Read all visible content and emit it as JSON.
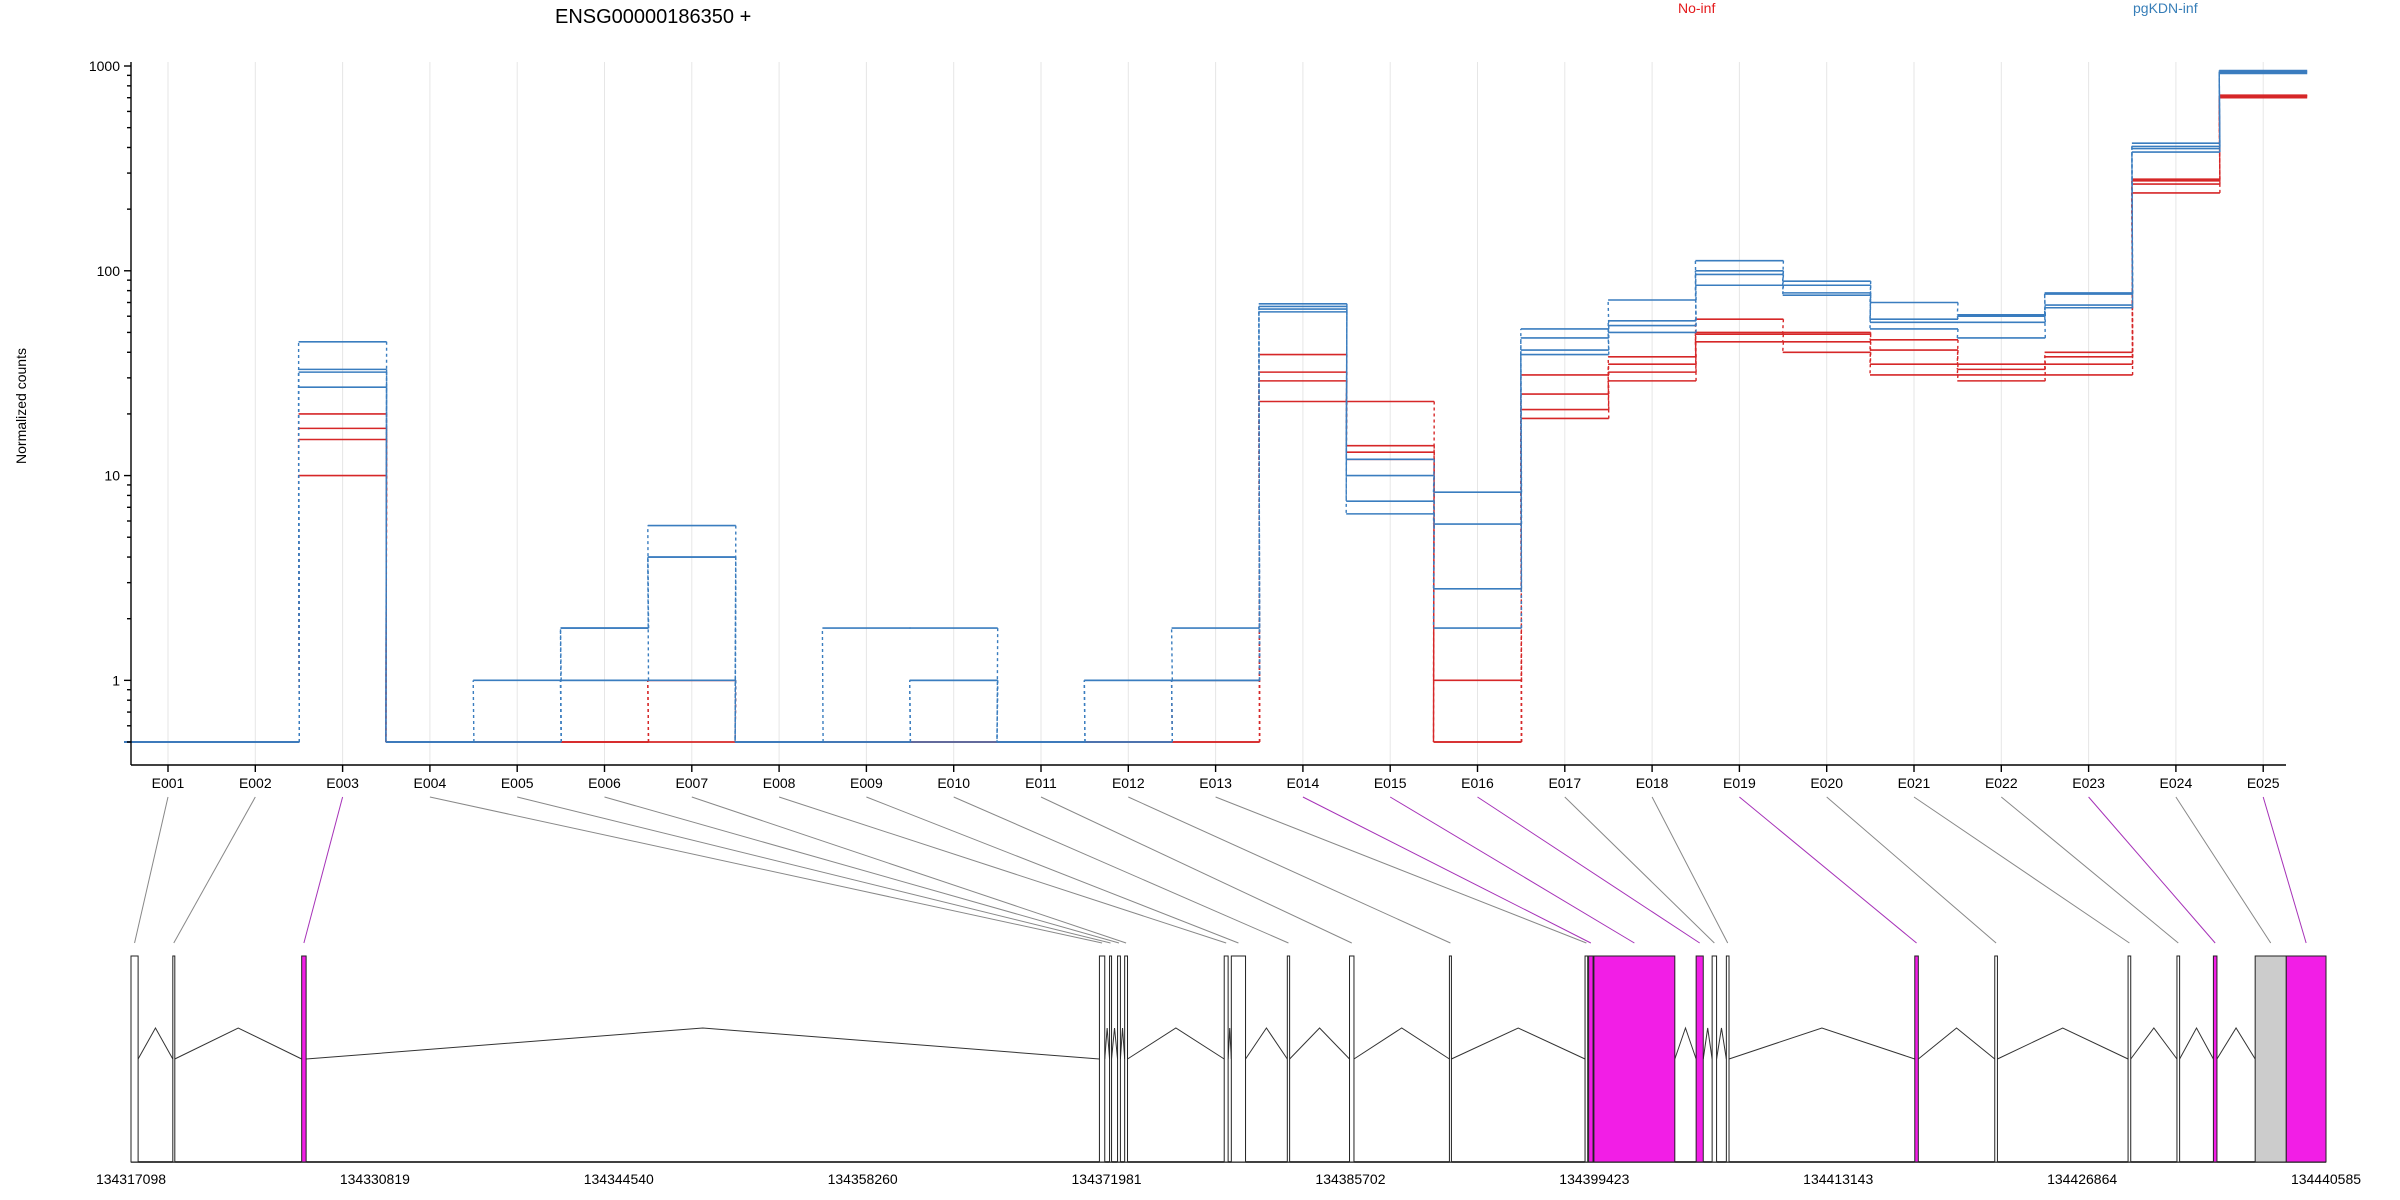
{
  "chart_data": {
    "type": "line",
    "title": "ENSG00000186350 +",
    "ylabel": "Normalized counts",
    "xlabel": "",
    "y_scale": "log",
    "ylim": [
      0.5,
      1000
    ],
    "y_ticks": [
      "1",
      "10",
      "100",
      "1000"
    ],
    "y_tick_values": [
      1,
      10,
      100,
      1000
    ],
    "categories": [
      "E001",
      "E002",
      "E003",
      "E004",
      "E005",
      "E006",
      "E007",
      "E008",
      "E009",
      "E010",
      "E011",
      "E012",
      "E013",
      "E014",
      "E015",
      "E016",
      "E017",
      "E018",
      "E019",
      "E020",
      "E021",
      "E022",
      "E023",
      "E024",
      "E025"
    ],
    "legend": [
      {
        "name": "No-inf",
        "color": "#e41a1c",
        "placement": "top"
      },
      {
        "name": "pgKDN-inf",
        "color": "#377eb8",
        "placement": "top-right"
      }
    ],
    "grid": true,
    "colors": {
      "No-inf": "#d62728",
      "pgKDN-inf": "#3a7dbf",
      "highlight_exon": "#f21ee6",
      "gray_exon": "#cccccc"
    },
    "series": [
      {
        "group": "No-inf",
        "values": [
          0.5,
          0.5,
          20,
          0.5,
          0.5,
          0.5,
          1,
          0.5,
          0.5,
          0.5,
          0.5,
          0.5,
          1,
          39,
          14,
          1,
          31,
          38,
          58,
          50,
          46,
          35,
          40,
          280,
          720
        ]
      },
      {
        "group": "No-inf",
        "values": [
          0.5,
          0.5,
          17,
          0.5,
          0.5,
          0.5,
          1,
          0.5,
          0.5,
          0.5,
          0.5,
          0.5,
          0.5,
          32,
          13,
          0.5,
          25,
          35,
          50,
          49,
          41,
          33,
          38,
          275,
          715
        ]
      },
      {
        "group": "No-inf",
        "values": [
          0.5,
          0.5,
          15,
          0.5,
          0.5,
          0.5,
          0.5,
          0.5,
          0.5,
          0.5,
          0.5,
          0.5,
          0.5,
          29,
          23,
          0.5,
          21,
          32,
          49,
          45,
          35,
          31,
          35,
          265,
          710
        ]
      },
      {
        "group": "No-inf",
        "values": [
          0.5,
          0.5,
          10,
          0.5,
          0.5,
          0.5,
          0.5,
          0.5,
          0.5,
          0.5,
          0.5,
          0.5,
          0.5,
          23,
          12,
          0.5,
          19,
          29,
          45,
          40,
          31,
          29,
          31,
          240,
          700
        ]
      },
      {
        "group": "pgKDN-inf",
        "values": [
          0.5,
          0.5,
          45,
          0.5,
          1,
          1.8,
          5.7,
          0.5,
          1.8,
          1.8,
          0.5,
          1,
          1.8,
          69,
          12,
          8.3,
          52,
          72,
          112,
          89,
          70,
          61,
          78,
          420,
          950
        ]
      },
      {
        "group": "pgKDN-inf",
        "values": [
          0.5,
          0.5,
          33,
          0.5,
          0.5,
          1,
          4,
          0.5,
          0.5,
          1,
          0.5,
          1,
          1,
          67,
          10,
          5.8,
          47,
          57,
          100,
          85,
          58,
          60,
          77,
          405,
          940
        ]
      },
      {
        "group": "pgKDN-inf",
        "values": [
          0.5,
          0.5,
          32,
          0.5,
          0.5,
          1.8,
          4,
          0.5,
          0.5,
          1,
          0.5,
          0.5,
          1,
          65,
          7.5,
          2.8,
          41,
          54,
          96,
          78,
          56,
          56,
          68,
          395,
          930
        ]
      },
      {
        "group": "pgKDN-inf",
        "values": [
          0.5,
          0.5,
          27,
          0.5,
          0.5,
          1,
          1,
          0.5,
          0.5,
          0.5,
          0.5,
          0.5,
          1,
          63,
          6.5,
          1.8,
          39,
          50,
          85,
          76,
          52,
          47,
          66,
          380,
          920
        ]
      }
    ],
    "gene_model": {
      "coordinate_labels": [
        "134317098",
        "134330819",
        "134344540",
        "134358260",
        "134371981",
        "134385702",
        "134399423",
        "134413143",
        "134426864",
        "134440585"
      ],
      "coordinate_values": [
        134317098,
        134330819,
        134344540,
        134358260,
        134371981,
        134385702,
        134399423,
        134413143,
        134426864,
        134440585
      ],
      "range": [
        134317098,
        134440585
      ],
      "exons": [
        {
          "id": "E001",
          "start": 134317098,
          "end": 134317498,
          "highlight": false
        },
        {
          "id": "E002",
          "start": 134319450,
          "end": 134319560,
          "highlight": false
        },
        {
          "id": "E003",
          "start": 134326700,
          "end": 134326950,
          "highlight": true
        },
        {
          "id": "E004",
          "start": 134371580,
          "end": 134371880,
          "highlight": false
        },
        {
          "id": "E005",
          "start": 134372150,
          "end": 134372260,
          "highlight": false
        },
        {
          "id": "E006",
          "start": 134372600,
          "end": 134372760,
          "highlight": false
        },
        {
          "id": "E007",
          "start": 134373000,
          "end": 134373160,
          "highlight": false
        },
        {
          "id": "E008",
          "start": 134378600,
          "end": 134378820,
          "highlight": false
        },
        {
          "id": "E009",
          "start": 134379000,
          "end": 134379800,
          "highlight": false
        },
        {
          "id": "E010",
          "start": 134382150,
          "end": 134382280,
          "highlight": false
        },
        {
          "id": "E011",
          "start": 134385650,
          "end": 134385900,
          "highlight": false
        },
        {
          "id": "E012",
          "start": 134391270,
          "end": 134391380,
          "highlight": false
        },
        {
          "id": "E013",
          "start": 134398900,
          "end": 134399050,
          "highlight": false
        },
        {
          "id": "E014",
          "start": 134399100,
          "end": 134399350,
          "highlight": true
        },
        {
          "id": "E015",
          "start": 134399400,
          "end": 134403950,
          "highlight": true
        },
        {
          "id": "E016",
          "start": 134405150,
          "end": 134405550,
          "highlight": true
        },
        {
          "id": "E017",
          "start": 134406050,
          "end": 134406300,
          "highlight": false
        },
        {
          "id": "E018",
          "start": 134406850,
          "end": 134407000,
          "highlight": false
        },
        {
          "id": "E019",
          "start": 134417450,
          "end": 134417650,
          "highlight": true
        },
        {
          "id": "E020",
          "start": 134421950,
          "end": 134422100,
          "highlight": false
        },
        {
          "id": "E021",
          "start": 134429450,
          "end": 134429600,
          "highlight": false
        },
        {
          "id": "E022",
          "start": 134432200,
          "end": 134432350,
          "highlight": false
        },
        {
          "id": "E023",
          "start": 134434250,
          "end": 134434450,
          "highlight": true
        },
        {
          "id": "E024",
          "start": 134436600,
          "end": 134438350,
          "highlight": false,
          "gray": true
        },
        {
          "id": "E025",
          "start": 134438350,
          "end": 134440585,
          "highlight": true
        }
      ]
    }
  }
}
